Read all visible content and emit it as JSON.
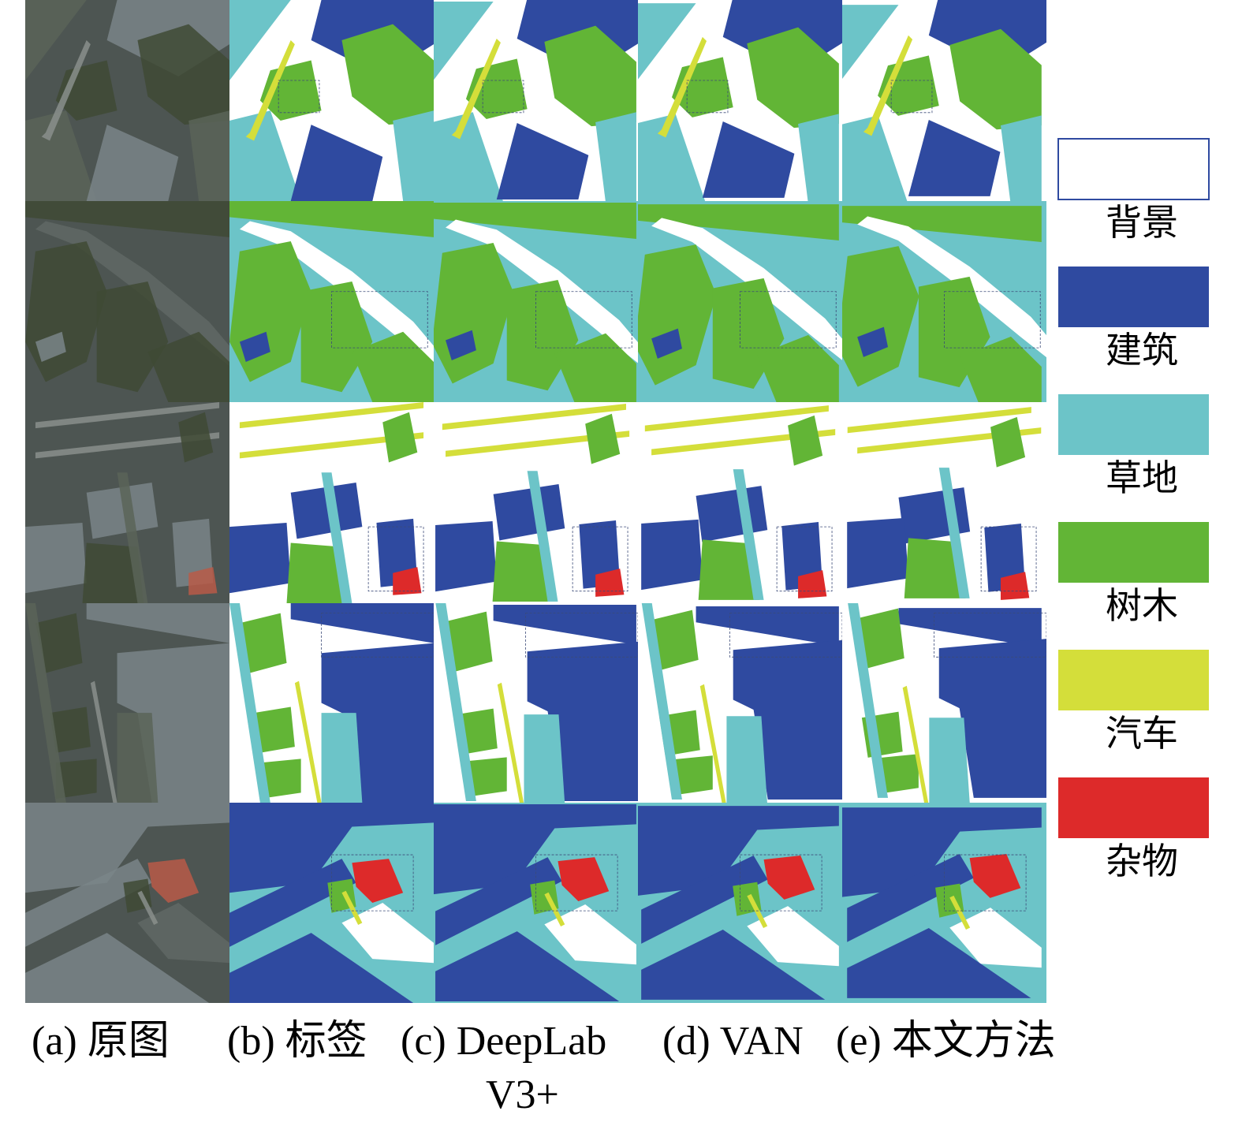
{
  "legend": [
    {
      "label": "背景",
      "color": "#ffffff"
    },
    {
      "label": "建筑",
      "color": "#2f4aa0"
    },
    {
      "label": "草地",
      "color": "#6cc4c8"
    },
    {
      "label": "树木",
      "color": "#62b536"
    },
    {
      "label": "汽车",
      "color": "#d4de3a"
    },
    {
      "label": "杂物",
      "color": "#dd2a2a"
    }
  ],
  "captions": [
    "(a) 原图",
    "(b) 标签",
    "(c) DeepLab",
    "V3+",
    "(d) VAN",
    "(e) 本文方法"
  ]
}
